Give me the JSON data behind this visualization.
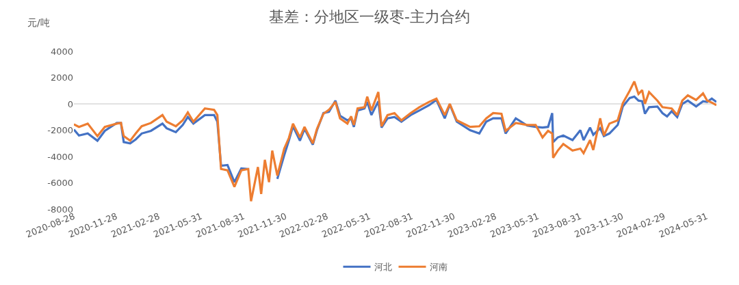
{
  "chart_data": {
    "type": "line",
    "title": "基差：分地区一级枣-主力合约",
    "ylabel": "元/吨",
    "x": [
      "2020-08-28",
      "2020-09-08",
      "2020-09-27",
      "2020-10-18",
      "2020-11-03",
      "2020-11-29",
      "2020-12-08",
      "2020-12-14",
      "2020-12-28",
      "2021-01-09",
      "2021-01-22",
      "2021-02-11",
      "2021-03-08",
      "2021-03-17",
      "2021-04-06",
      "2021-04-21",
      "2021-05-02",
      "2021-05-14",
      "2021-06-08",
      "2021-06-28",
      "2021-07-05",
      "2021-07-13",
      "2021-07-27",
      "2021-08-11",
      "2021-08-26",
      "2021-09-10",
      "2021-09-16",
      "2021-10-01",
      "2021-10-08",
      "2021-10-16",
      "2021-10-25",
      "2021-11-01",
      "2021-11-12",
      "2021-11-27",
      "2021-12-07",
      "2021-12-16",
      "2021-12-31",
      "2022-01-10",
      "2022-01-28",
      "2022-02-06",
      "2022-02-20",
      "2022-03-04",
      "2022-03-18",
      "2022-03-28",
      "2022-04-13",
      "2022-04-21",
      "2022-04-27",
      "2022-05-05",
      "2022-05-20",
      "2022-05-26",
      "2022-06-04",
      "2022-06-19",
      "2022-06-26",
      "2022-07-09",
      "2022-07-24",
      "2022-08-08",
      "2022-08-28",
      "2022-09-16",
      "2022-10-07",
      "2022-10-23",
      "2022-11-10",
      "2022-11-21",
      "2022-12-06",
      "2023-01-04",
      "2023-01-24",
      "2023-02-08",
      "2023-02-23",
      "2023-03-13",
      "2023-03-22",
      "2023-04-13",
      "2023-05-08",
      "2023-05-26",
      "2023-06-10",
      "2023-06-22",
      "2023-07-01",
      "2023-07-03",
      "2023-07-13",
      "2023-07-25",
      "2023-08-14",
      "2023-08-31",
      "2023-09-07",
      "2023-09-21",
      "2023-09-28",
      "2023-10-13",
      "2023-10-21",
      "2023-11-02",
      "2023-11-20",
      "2023-12-01",
      "2023-12-16",
      "2023-12-26",
      "2024-01-04",
      "2024-01-12",
      "2024-01-18",
      "2024-01-27",
      "2024-02-14",
      "2024-02-25",
      "2024-03-06",
      "2024-03-16",
      "2024-03-28",
      "2024-04-08",
      "2024-04-20",
      "2024-05-08",
      "2024-05-23",
      "2024-06-01",
      "2024-06-11",
      "2024-06-21"
    ],
    "series": [
      {
        "name": "河北",
        "color": "#4472c4",
        "values": [
          -1950,
          -2400,
          -2250,
          -2800,
          -2050,
          -1450,
          -1450,
          -2900,
          -3000,
          -2700,
          -2250,
          -2050,
          -1500,
          -1850,
          -2150,
          -1600,
          -1000,
          -1500,
          -850,
          -850,
          -1350,
          -4700,
          -4650,
          -5950,
          -4900,
          -4950,
          null,
          null,
          null,
          null,
          null,
          null,
          -5700,
          -3900,
          -2800,
          -1700,
          -2800,
          -1900,
          -3100,
          -2000,
          -700,
          -600,
          250,
          -900,
          -1250,
          -1100,
          -1750,
          -500,
          -350,
          150,
          -850,
          200,
          -1800,
          -1100,
          -1000,
          -1350,
          -850,
          -500,
          -100,
          300,
          -1100,
          -50,
          -1350,
          -2000,
          -2250,
          -1350,
          -1100,
          -1100,
          -2250,
          -1100,
          -1650,
          -1750,
          -1800,
          -1750,
          -700,
          -2900,
          -2550,
          -2400,
          -2750,
          -2000,
          -2750,
          -1800,
          -2350,
          -1850,
          -2450,
          -2250,
          -1600,
          -200,
          450,
          550,
          250,
          200,
          -750,
          -250,
          -200,
          -700,
          -950,
          -550,
          -1000,
          0,
          250,
          -200,
          200,
          150,
          400,
          150
        ]
      },
      {
        "name": "河南",
        "color": "#ed7d31",
        "values": [
          -1550,
          -1750,
          -1500,
          -2450,
          -1750,
          -1500,
          -1450,
          -2450,
          -2800,
          -2250,
          -1700,
          -1450,
          -850,
          -1350,
          -1700,
          -1250,
          -650,
          -1350,
          -350,
          -450,
          -850,
          -4950,
          -5050,
          -6300,
          -5050,
          -4950,
          -7400,
          -4800,
          -6850,
          -4250,
          -5950,
          -3550,
          -5450,
          -3400,
          -2600,
          -1500,
          -2550,
          -1750,
          -3000,
          -1900,
          -750,
          -450,
          150,
          -1100,
          -1500,
          -950,
          -1600,
          -350,
          -250,
          550,
          -500,
          900,
          -1700,
          -850,
          -700,
          -1250,
          -700,
          -250,
          150,
          400,
          -850,
          0,
          -1250,
          -1750,
          -1700,
          -1100,
          -700,
          -750,
          -2050,
          -1450,
          -1600,
          -1600,
          -2550,
          -2050,
          -2250,
          -4100,
          -3550,
          -3050,
          -3550,
          -3400,
          -3750,
          -2750,
          -3500,
          -1100,
          -2400,
          -1500,
          -1250,
          50,
          1000,
          1700,
          750,
          1050,
          0,
          900,
          250,
          -250,
          -300,
          -350,
          -850,
          250,
          650,
          300,
          800,
          250,
          100,
          -100
        ]
      }
    ],
    "xlim": [
      "2020-08-28",
      "2024-06-21"
    ],
    "xticks": [
      "2020-08-28",
      "2020-11-28",
      "2021-02-28",
      "2021-05-31",
      "2021-08-31",
      "2021-11-30",
      "2022-02-28",
      "2022-05-31",
      "2022-08-31",
      "2022-11-30",
      "2023-02-28",
      "2023-05-31",
      "2023-08-31",
      "2023-11-30",
      "2024-02-29",
      "2024-05-31"
    ],
    "ylim": [
      -8000,
      4000
    ],
    "yticks": [
      -8000,
      -6000,
      -4000,
      -2000,
      0,
      2000,
      4000
    ],
    "ref_lines": [
      {
        "axis": "y",
        "value": 0,
        "color": "#d9d9d9"
      }
    ],
    "grid": false,
    "legend": "bottom",
    "marker": "none",
    "line_style": "solid"
  }
}
